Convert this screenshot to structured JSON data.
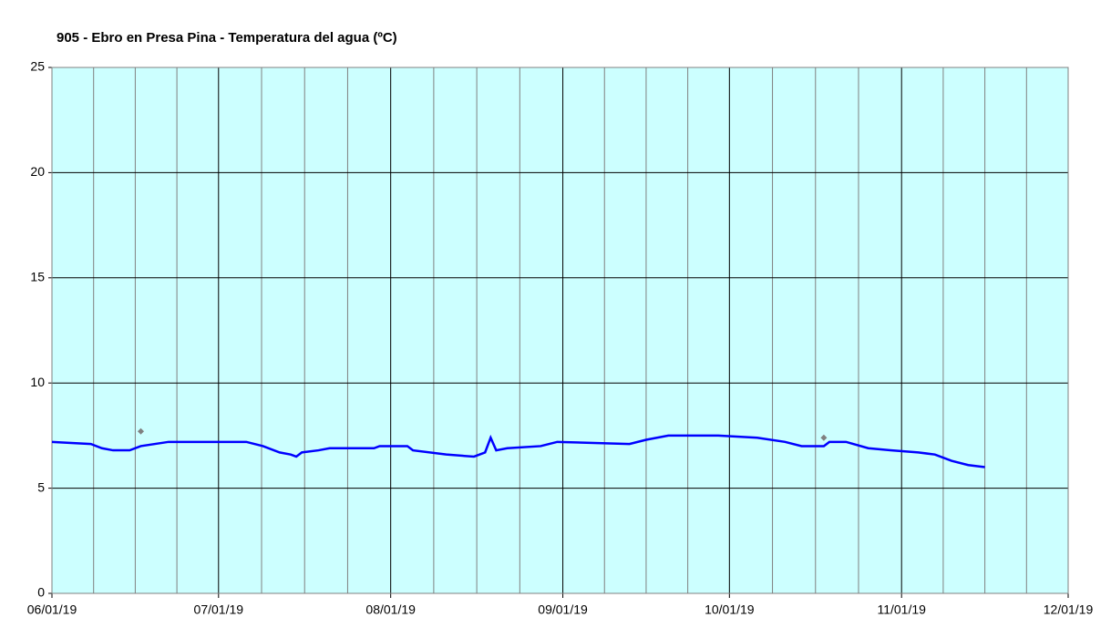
{
  "chart_data": {
    "type": "line",
    "title": "905 - Ebro en Presa Pina - Temperatura del agua (ºC)",
    "xlim": [
      "2019-06-01",
      "2019-12-01"
    ],
    "xticks": [
      {
        "value": "2019-06-01",
        "label": "06/01/19"
      },
      {
        "value": "2019-07-01",
        "label": "07/01/19"
      },
      {
        "value": "2019-08-01",
        "label": "08/01/19"
      },
      {
        "value": "2019-09-01",
        "label": "09/01/19"
      },
      {
        "value": "2019-10-01",
        "label": "10/01/19"
      },
      {
        "value": "2019-11-01",
        "label": "11/01/19"
      },
      {
        "value": "2019-12-01",
        "label": "12/01/19"
      }
    ],
    "ylim": [
      0,
      25
    ],
    "yticks": [
      0,
      5,
      10,
      15,
      20,
      25
    ],
    "grid": true,
    "series": [
      {
        "color": "#0000ff",
        "marker": "none",
        "x": [
          "2019-06-01",
          "2019-06-08",
          "2019-06-10",
          "2019-06-12",
          "2019-06-15",
          "2019-06-17",
          "2019-06-22",
          "2019-07-06",
          "2019-07-09",
          "2019-07-12",
          "2019-07-14",
          "2019-07-15",
          "2019-07-16",
          "2019-07-19",
          "2019-07-21",
          "2019-07-29",
          "2019-07-30",
          "2019-08-04",
          "2019-08-05",
          "2019-08-11",
          "2019-08-16",
          "2019-08-18",
          "2019-08-19",
          "2019-08-20",
          "2019-08-22",
          "2019-08-28",
          "2019-08-31",
          "2019-09-13",
          "2019-09-16",
          "2019-09-20",
          "2019-09-29",
          "2019-10-06",
          "2019-10-11",
          "2019-10-14",
          "2019-10-18",
          "2019-10-19",
          "2019-10-22",
          "2019-10-26",
          "2019-10-30",
          "2019-11-04",
          "2019-11-07",
          "2019-11-10",
          "2019-11-13",
          "2019-11-16"
        ],
        "values": [
          7.2,
          7.1,
          6.9,
          6.8,
          6.8,
          7.0,
          7.2,
          7.2,
          7.0,
          6.7,
          6.6,
          6.5,
          6.7,
          6.8,
          6.9,
          6.9,
          7.0,
          7.0,
          6.8,
          6.6,
          6.5,
          6.7,
          7.4,
          6.8,
          6.9,
          7.0,
          7.2,
          7.1,
          7.3,
          7.5,
          7.5,
          7.4,
          7.2,
          7.0,
          7.0,
          7.2,
          7.2,
          6.9,
          6.8,
          6.7,
          6.6,
          6.3,
          6.1,
          6.0
        ]
      },
      {
        "color": "#808080",
        "marker": "diamond",
        "x": [
          "2019-06-17",
          "2019-10-18"
        ],
        "values": [
          7.7,
          7.4
        ]
      }
    ]
  }
}
